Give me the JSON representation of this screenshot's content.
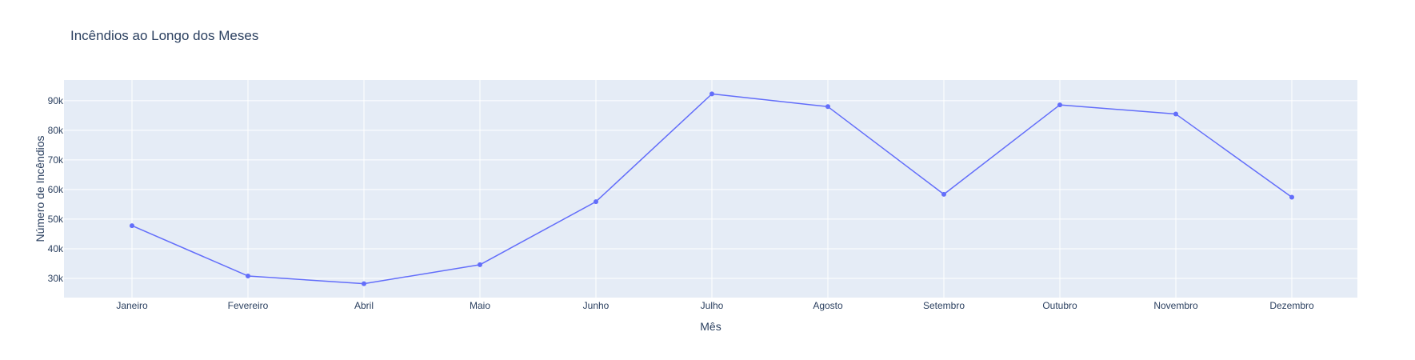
{
  "chart_data": {
    "type": "line",
    "title": "Incêndios ao Longo dos Meses",
    "xlabel": "Mês",
    "ylabel": "Número de Incêndios",
    "categories": [
      "Janeiro",
      "Fevereiro",
      "Abril",
      "Maio",
      "Junho",
      "Julho",
      "Agosto",
      "Setembro",
      "Outubro",
      "Novembro",
      "Dezembro"
    ],
    "series": [
      {
        "values": [
          47800,
          30800,
          28200,
          34600,
          55900,
          92300,
          88000,
          58400,
          88600,
          85500,
          57400
        ]
      }
    ],
    "yticks": [
      30000,
      40000,
      50000,
      60000,
      70000,
      80000,
      90000
    ],
    "ytick_labels": [
      "30k",
      "40k",
      "50k",
      "60k",
      "70k",
      "80k",
      "90k"
    ],
    "ylim": [
      23500,
      97000
    ],
    "grid": true,
    "colors": {
      "line": "#636efa",
      "plot_bg": "#e5ecf6",
      "grid": "#ffffff",
      "text": "#2a3f5f"
    }
  }
}
